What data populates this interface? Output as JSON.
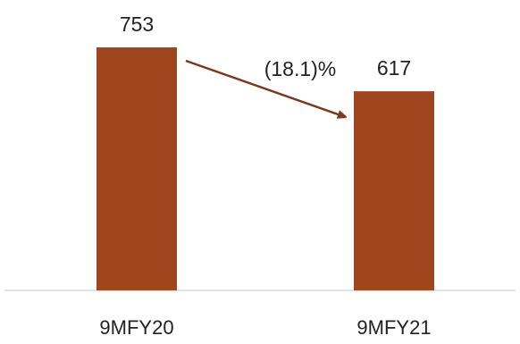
{
  "chart_data": {
    "type": "bar",
    "categories": [
      "9MFY20",
      "9MFY21"
    ],
    "values": [
      753,
      617
    ],
    "data_labels": [
      "753",
      "617"
    ],
    "annotation": "(18.1)%",
    "ylim": [
      0,
      753
    ],
    "grid": false,
    "legend": "none"
  },
  "colors": {
    "bar": "#a0461f",
    "arrow": "#7a3a1e",
    "baseline": "#d9d9d9"
  }
}
